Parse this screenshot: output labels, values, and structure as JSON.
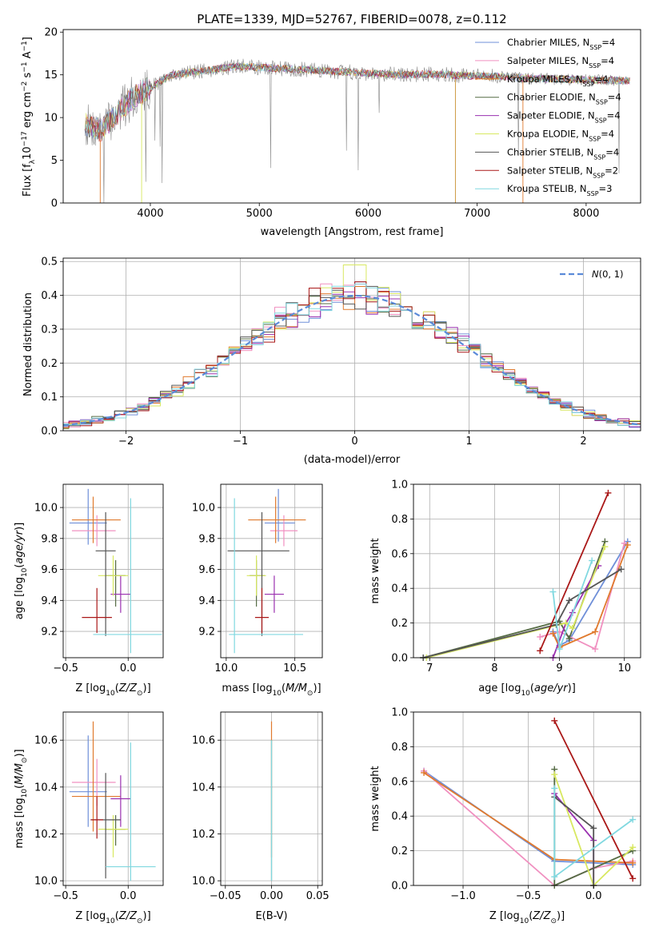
{
  "colors": {
    "Chabrier MILES": "#6f8fd8",
    "Salpeter MILES": "#f090c0",
    "Kroupa MILES": "#e07a2e",
    "Chabrier ELODIE": "#556b44",
    "Salpeter ELODIE": "#9a30b0",
    "Kroupa ELODIE": "#d8e860",
    "Chabrier STELIB": "#555555",
    "Salpeter STELIB": "#aa1818",
    "Kroupa STELIB": "#80d8e0",
    "gaussian": "#5a8ad8"
  },
  "chart_data": [
    {
      "id": "spectrum",
      "type": "line",
      "title": "PLATE=1339, MJD=52767, FIBERID=0078, z=0.112",
      "xlabel": "wavelength [Angstrom, rest frame]",
      "ylabel": "Flux [f_λ 10^-17 erg cm^-2 s^-1 A^-1]",
      "xlim": [
        3200,
        8500
      ],
      "ylim": [
        0,
        20.3
      ],
      "xticks": [
        4000,
        5000,
        6000,
        7000,
        8000
      ],
      "yticks": [
        0,
        5,
        10,
        15,
        20
      ],
      "legend_position": "right",
      "continuum": {
        "x": [
          3400,
          3550,
          3700,
          3850,
          4000,
          4200,
          4500,
          4800,
          5100,
          5400,
          5700,
          6000,
          6300,
          6600,
          6900,
          7200,
          7500,
          7800,
          8100,
          8400
        ],
        "y": [
          9.2,
          8.5,
          10.5,
          12.5,
          13.5,
          15.0,
          15.5,
          16.0,
          15.8,
          15.6,
          15.4,
          15.2,
          15.0,
          15.1,
          14.9,
          14.8,
          14.6,
          14.5,
          14.4,
          14.3
        ]
      },
      "series": [
        {
          "name": "Chabrier MILES",
          "n_ssp": "4"
        },
        {
          "name": "Salpeter MILES",
          "n_ssp": "4"
        },
        {
          "name": "Kroupa MILES",
          "n_ssp": "4"
        },
        {
          "name": "Chabrier ELODIE",
          "n_ssp": "4"
        },
        {
          "name": "Salpeter ELODIE",
          "n_ssp": "4"
        },
        {
          "name": "Kroupa ELODIE",
          "n_ssp": "4"
        },
        {
          "name": "Chabrier STELIB",
          "n_ssp": "4"
        },
        {
          "name": "Salpeter STELIB",
          "n_ssp": "2"
        },
        {
          "name": "Kroupa STELIB",
          "n_ssp": "3"
        }
      ]
    },
    {
      "id": "residuals",
      "type": "line",
      "xlabel": "(data-model)/error",
      "ylabel": "Normed distribution",
      "xlim": [
        -2.55,
        2.5
      ],
      "ylim": [
        0,
        0.51
      ],
      "xticks": [
        -2,
        -1,
        0,
        1,
        2
      ],
      "xtick_labels": [
        "−2",
        "−1",
        "0",
        "1",
        "2"
      ],
      "yticks": [
        0.0,
        0.1,
        0.2,
        0.3,
        0.4,
        0.5
      ],
      "ytick_labels": [
        "0.0",
        "0.1",
        "0.2",
        "0.3",
        "0.4",
        "0.5"
      ],
      "grid": true,
      "legend": {
        "label": "N(0,1)",
        "position": "top-right"
      },
      "bin_width": 0.1
    },
    {
      "id": "z-age",
      "type": "scatter",
      "xlabel": "Z [log10(Z/Z⊙)]",
      "ylabel": "age  [log10(age/yr)]",
      "xlim": [
        -0.52,
        0.28
      ],
      "ylim": [
        9.03,
        10.15
      ],
      "xticks": [
        -0.5,
        0.0
      ],
      "xtick_labels": [
        "−0.5",
        "0.0"
      ],
      "yticks": [
        9.2,
        9.4,
        9.6,
        9.8,
        10.0
      ],
      "ytick_labels": [
        "9.2",
        "9.4",
        "9.6",
        "9.8",
        "10.0"
      ],
      "grid": true,
      "points": [
        {
          "name": "Chabrier MILES",
          "x": -0.32,
          "y": 9.9,
          "xerr": [
            0.15,
            0.15
          ],
          "yerr": [
            0.14,
            0.22
          ]
        },
        {
          "name": "Salpeter MILES",
          "x": -0.25,
          "y": 9.85,
          "xerr": [
            0.2,
            0.15
          ],
          "yerr": [
            0.1,
            0.1
          ]
        },
        {
          "name": "Kroupa MILES",
          "x": -0.28,
          "y": 9.92,
          "xerr": [
            0.17,
            0.22
          ],
          "yerr": [
            0.15,
            0.15
          ]
        },
        {
          "name": "Chabrier ELODIE",
          "x": -0.1,
          "y": 9.56,
          "xerr": [
            0.08,
            0.08
          ],
          "yerr": [
            0.2,
            0.1
          ]
        },
        {
          "name": "Salpeter ELODIE",
          "x": -0.06,
          "y": 9.44,
          "xerr": [
            0.08,
            0.08
          ],
          "yerr": [
            0.12,
            0.12
          ]
        },
        {
          "name": "Kroupa ELODIE",
          "x": -0.12,
          "y": 9.56,
          "xerr": [
            0.12,
            0.12
          ],
          "yerr": [
            0.13,
            0.13
          ]
        },
        {
          "name": "Chabrier STELIB",
          "x": -0.18,
          "y": 9.72,
          "xerr": [
            0.08,
            0.08
          ],
          "yerr": [
            0.55,
            0.25
          ]
        },
        {
          "name": "Salpeter STELIB",
          "x": -0.25,
          "y": 9.29,
          "xerr": [
            0.12,
            0.12
          ],
          "yerr": [
            0.1,
            0.19
          ]
        },
        {
          "name": "Kroupa STELIB",
          "x": 0.02,
          "y": 9.18,
          "xerr": [
            0.3,
            0.25
          ],
          "yerr": [
            0.12,
            0.88
          ]
        }
      ]
    },
    {
      "id": "mass-age",
      "type": "scatter",
      "xlabel": "mass [log10(M/M⊙)]",
      "xlim": [
        9.96,
        10.7
      ],
      "ylim": [
        9.03,
        10.15
      ],
      "xticks": [
        10.0,
        10.5
      ],
      "xtick_labels": [
        "10.0",
        "10.5"
      ],
      "yticks": [
        9.2,
        9.4,
        9.6,
        9.8,
        10.0
      ],
      "ytick_labels": [
        "9.2",
        "9.4",
        "9.6",
        "9.8",
        "10.0"
      ],
      "grid": true,
      "points": [
        {
          "name": "Chabrier MILES",
          "x": 10.38,
          "y": 9.9,
          "xerr": [
            0.1,
            0.12
          ],
          "yerr": [
            0.12,
            0.22
          ]
        },
        {
          "name": "Salpeter MILES",
          "x": 10.42,
          "y": 9.85,
          "xerr": [
            0.1,
            0.1
          ],
          "yerr": [
            0.1,
            0.1
          ]
        },
        {
          "name": "Kroupa MILES",
          "x": 10.36,
          "y": 9.92,
          "xerr": [
            0.2,
            0.22
          ],
          "yerr": [
            0.15,
            0.15
          ]
        },
        {
          "name": "Chabrier ELODIE",
          "x": 10.22,
          "y": 9.56,
          "xerr": [
            0.05,
            0.06
          ],
          "yerr": [
            0.2,
            0.1
          ]
        },
        {
          "name": "Salpeter ELODIE",
          "x": 10.35,
          "y": 9.44,
          "xerr": [
            0.07,
            0.07
          ],
          "yerr": [
            0.12,
            0.12
          ]
        },
        {
          "name": "Kroupa ELODIE",
          "x": 10.22,
          "y": 9.56,
          "xerr": [
            0.07,
            0.07
          ],
          "yerr": [
            0.13,
            0.13
          ]
        },
        {
          "name": "Chabrier STELIB",
          "x": 10.26,
          "y": 9.72,
          "xerr": [
            0.25,
            0.2
          ],
          "yerr": [
            0.55,
            0.25
          ]
        },
        {
          "name": "Salpeter STELIB",
          "x": 10.26,
          "y": 9.29,
          "xerr": [
            0.05,
            0.05
          ],
          "yerr": [
            0.1,
            0.19
          ]
        },
        {
          "name": "Kroupa STELIB",
          "x": 10.06,
          "y": 9.18,
          "xerr": [
            0.04,
            0.5
          ],
          "yerr": [
            0.12,
            0.88
          ]
        }
      ]
    },
    {
      "id": "age-weight",
      "type": "line",
      "xlabel": "age  [log10(age/yr)]",
      "ylabel": "mass weight",
      "xlim": [
        6.75,
        10.25
      ],
      "ylim": [
        0.0,
        1.0
      ],
      "xticks": [
        7,
        8,
        9,
        10
      ],
      "xtick_labels": [
        "7",
        "8",
        "9",
        "10"
      ],
      "yticks": [
        0.0,
        0.2,
        0.4,
        0.6,
        0.8,
        1.0
      ],
      "ytick_labels": [
        "0.0",
        "0.2",
        "0.4",
        "0.6",
        "0.8",
        "1.0"
      ],
      "grid": true,
      "series": [
        {
          "name": "Chabrier MILES",
          "x": [
            8.9,
            9.0,
            9.15,
            10.05
          ],
          "y": [
            0.15,
            0.07,
            0.1,
            0.67
          ]
        },
        {
          "name": "Salpeter MILES",
          "x": [
            8.7,
            9.0,
            9.55,
            10.0
          ],
          "y": [
            0.12,
            0.15,
            0.05,
            0.66
          ]
        },
        {
          "name": "Kroupa MILES",
          "x": [
            8.9,
            9.0,
            9.55,
            10.05
          ],
          "y": [
            0.14,
            0.06,
            0.15,
            0.65
          ]
        },
        {
          "name": "Chabrier ELODIE",
          "x": [
            6.9,
            9.0,
            9.15,
            9.7
          ],
          "y": [
            0.0,
            0.21,
            0.11,
            0.67
          ]
        },
        {
          "name": "Salpeter ELODIE",
          "x": [
            8.9,
            9.1,
            9.2,
            9.6
          ],
          "y": [
            0.0,
            0.2,
            0.26,
            0.53
          ]
        },
        {
          "name": "Kroupa ELODIE",
          "x": [
            6.95,
            9.1,
            9.2,
            9.7
          ],
          "y": [
            0.0,
            0.2,
            0.17,
            0.64
          ]
        },
        {
          "name": "Chabrier STELIB",
          "x": [
            6.9,
            8.95,
            9.15,
            9.95
          ],
          "y": [
            0.0,
            0.19,
            0.33,
            0.51
          ]
        },
        {
          "name": "Salpeter STELIB",
          "x": [
            8.7,
            9.75
          ],
          "y": [
            0.04,
            0.95
          ]
        },
        {
          "name": "Kroupa STELIB",
          "x": [
            8.9,
            9.0,
            9.5
          ],
          "y": [
            0.38,
            0.05,
            0.56
          ]
        }
      ]
    },
    {
      "id": "z-mass",
      "type": "scatter",
      "xlabel": "Z [log10(Z/Z⊙)]",
      "ylabel": "mass [log10(M/M⊙)]",
      "xlim": [
        -0.52,
        0.28
      ],
      "ylim": [
        9.98,
        10.72
      ],
      "xticks": [
        -0.5,
        0.0
      ],
      "xtick_labels": [
        "−0.5",
        "0.0"
      ],
      "yticks": [
        10.0,
        10.2,
        10.4,
        10.6
      ],
      "ytick_labels": [
        "10.0",
        "10.2",
        "10.4",
        "10.6"
      ],
      "grid": true,
      "points": [
        {
          "name": "Chabrier MILES",
          "x": -0.32,
          "y": 10.38,
          "xerr": [
            0.15,
            0.15
          ],
          "yerr": [
            0.15,
            0.24
          ]
        },
        {
          "name": "Salpeter MILES",
          "x": -0.25,
          "y": 10.42,
          "xerr": [
            0.2,
            0.15
          ],
          "yerr": [
            0.1,
            0.1
          ]
        },
        {
          "name": "Kroupa MILES",
          "x": -0.28,
          "y": 10.36,
          "xerr": [
            0.17,
            0.22
          ],
          "yerr": [
            0.15,
            0.32
          ]
        },
        {
          "name": "Chabrier ELODIE",
          "x": -0.1,
          "y": 10.22,
          "xerr": [
            0.08,
            0.08
          ],
          "yerr": [
            0.07,
            0.06
          ]
        },
        {
          "name": "Salpeter ELODIE",
          "x": -0.06,
          "y": 10.35,
          "xerr": [
            0.08,
            0.08
          ],
          "yerr": [
            0.12,
            0.1
          ]
        },
        {
          "name": "Kroupa ELODIE",
          "x": -0.12,
          "y": 10.22,
          "xerr": [
            0.12,
            0.12
          ],
          "yerr": [
            0.12,
            0.06
          ]
        },
        {
          "name": "Chabrier STELIB",
          "x": -0.18,
          "y": 10.26,
          "xerr": [
            0.12,
            0.12
          ],
          "yerr": [
            0.25,
            0.2
          ]
        },
        {
          "name": "Salpeter STELIB",
          "x": -0.25,
          "y": 10.26,
          "xerr": [
            0.05,
            0.05
          ],
          "yerr": [
            0.08,
            0.1
          ]
        },
        {
          "name": "Kroupa STELIB",
          "x": 0.02,
          "y": 10.06,
          "xerr": [
            0.2,
            0.2
          ],
          "yerr": [
            0.06,
            0.53
          ]
        }
      ]
    },
    {
      "id": "ebv-mass",
      "type": "scatter",
      "xlabel": "E(B-V)",
      "xlim": [
        -0.055,
        0.055
      ],
      "ylim": [
        9.98,
        10.72
      ],
      "xticks": [
        -0.05,
        0.0,
        0.05
      ],
      "xtick_labels": [
        "−0.05",
        "0.00",
        "0.05"
      ],
      "yticks": [
        10.0,
        10.2,
        10.4,
        10.6
      ],
      "ytick_labels": [
        "10.0",
        "10.2",
        "10.4",
        "10.6"
      ],
      "grid": true,
      "points": [
        {
          "name": "Kroupa MILES",
          "x": 0.0,
          "y": 10.5,
          "yerr": [
            0.4,
            0.18
          ]
        },
        {
          "name": "Chabrier ELODIE",
          "x": 0.0,
          "y": 10.3,
          "yerr": [
            0.3,
            0.3
          ]
        },
        {
          "name": "Kroupa STELIB",
          "x": 0.0,
          "y": 10.3,
          "yerr": [
            0.3,
            0.3
          ]
        }
      ]
    },
    {
      "id": "z-weight",
      "type": "line",
      "xlabel": "Z [log10(Z/Z⊙)]",
      "ylabel": "mass weight",
      "xlim": [
        -1.38,
        0.36
      ],
      "ylim": [
        0.0,
        1.0
      ],
      "xticks": [
        -1.0,
        -0.5,
        0.0
      ],
      "xtick_labels": [
        "−1.0",
        "−0.5",
        "0.0"
      ],
      "yticks": [
        0.0,
        0.2,
        0.4,
        0.6,
        0.8,
        1.0
      ],
      "ytick_labels": [
        "0.0",
        "0.2",
        "0.4",
        "0.6",
        "0.8",
        "1.0"
      ],
      "grid": true,
      "series": [
        {
          "name": "Chabrier MILES",
          "x": [
            -1.3,
            -0.3,
            0.3
          ],
          "y": [
            0.66,
            0.14,
            0.12
          ]
        },
        {
          "name": "Salpeter MILES",
          "x": [
            -1.3,
            -0.3,
            0.0,
            0.3
          ],
          "y": [
            0.66,
            0.0,
            0.1,
            0.14
          ]
        },
        {
          "name": "Kroupa MILES",
          "x": [
            -1.3,
            -0.3,
            0.3
          ],
          "y": [
            0.65,
            0.15,
            0.13
          ]
        },
        {
          "name": "Chabrier ELODIE",
          "x": [
            -0.3,
            -0.3,
            0.3
          ],
          "y": [
            0.67,
            0.0,
            0.2
          ]
        },
        {
          "name": "Salpeter ELODIE",
          "x": [
            -0.3,
            0.0,
            0.0
          ],
          "y": [
            0.53,
            0.26,
            0.0
          ]
        },
        {
          "name": "Kroupa ELODIE",
          "x": [
            -0.3,
            0.0,
            0.3
          ],
          "y": [
            0.64,
            0.0,
            0.22
          ]
        },
        {
          "name": "Chabrier STELIB",
          "x": [
            -0.3,
            0.0,
            0.0
          ],
          "y": [
            0.51,
            0.33,
            0.0
          ]
        },
        {
          "name": "Salpeter STELIB",
          "x": [
            -0.3,
            0.3
          ],
          "y": [
            0.95,
            0.04
          ]
        },
        {
          "name": "Kroupa STELIB",
          "x": [
            -0.3,
            -0.3,
            0.3
          ],
          "y": [
            0.56,
            0.05,
            0.38
          ]
        }
      ]
    }
  ]
}
